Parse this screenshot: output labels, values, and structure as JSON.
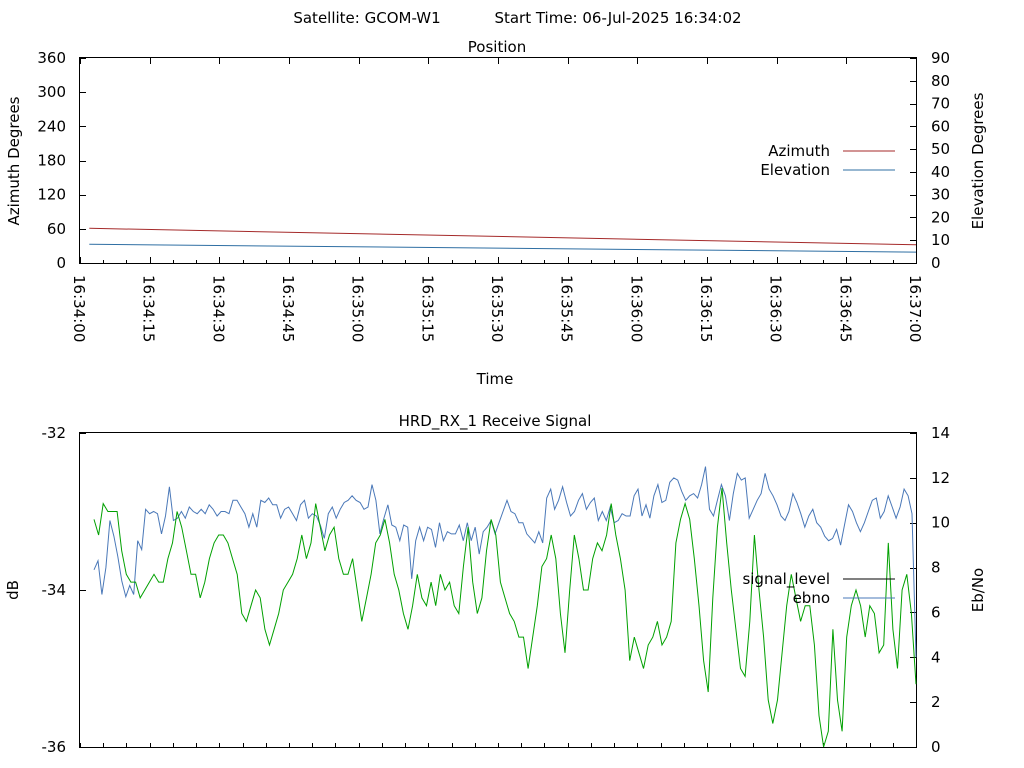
{
  "header": {
    "satellite_label": "Satellite: GCOM-W1",
    "start_time_label": "Start Time: 06-Jul-2025 16:34:02"
  },
  "colors": {
    "azimuth": "#a52a2a",
    "elevation": "#2f6fa3",
    "signal_level": "#00a000",
    "ebno": "#4a78b8",
    "legend_signal_sample": "#000000",
    "legend_ebno_sample": "#4a78b8"
  },
  "chart_data": [
    {
      "type": "line",
      "title": "Position",
      "xlabel": "Time",
      "ylabel": "Azimuth Degrees",
      "y2label": "Elevation Degrees",
      "x_ticks": [
        "16:34:00",
        "16:34:15",
        "16:34:30",
        "16:34:45",
        "16:35:00",
        "16:35:15",
        "16:35:30",
        "16:35:45",
        "16:36:00",
        "16:36:15",
        "16:36:30",
        "16:36:45",
        "16:37:00"
      ],
      "x_range_seconds": [
        0,
        180
      ],
      "ylim": [
        0,
        360
      ],
      "y_ticks": [
        0,
        60,
        120,
        180,
        240,
        300,
        360
      ],
      "y2lim": [
        0,
        90
      ],
      "y2_ticks": [
        0,
        10,
        20,
        30,
        40,
        50,
        60,
        70,
        80,
        90
      ],
      "legend_position": "right",
      "series": [
        {
          "name": "Azimuth",
          "axis": "y1",
          "x": [
            2,
            180
          ],
          "values": [
            61,
            32
          ]
        },
        {
          "name": "Elevation",
          "axis": "y2",
          "x": [
            2,
            180
          ],
          "values": [
            8.2,
            4.8
          ]
        }
      ]
    },
    {
      "type": "line",
      "title": "HRD_RX_1 Receive Signal",
      "xlabel": "",
      "ylabel": "dB",
      "y2label": "Eb/No",
      "ylim": [
        -36,
        -32
      ],
      "y_ticks": [
        -36,
        -34,
        -32
      ],
      "y2lim": [
        0,
        14
      ],
      "y2_ticks": [
        0,
        2,
        4,
        6,
        8,
        10,
        12,
        14
      ],
      "x_range_seconds": [
        0,
        180
      ],
      "legend_position": "right",
      "series": [
        {
          "name": "signal_level",
          "axis": "y1",
          "values": [
            -33.1,
            -33.3,
            -32.9,
            -33.0,
            -33.0,
            -33.0,
            -33.5,
            -33.8,
            -33.9,
            -33.9,
            -34.1,
            -34.0,
            -33.9,
            -33.8,
            -33.9,
            -33.9,
            -33.6,
            -33.4,
            -33.0,
            -33.2,
            -33.5,
            -33.8,
            -33.8,
            -34.1,
            -33.9,
            -33.6,
            -33.4,
            -33.3,
            -33.3,
            -33.4,
            -33.6,
            -33.8,
            -34.3,
            -34.4,
            -34.2,
            -34.0,
            -34.1,
            -34.5,
            -34.7,
            -34.5,
            -34.3,
            -34.0,
            -33.9,
            -33.8,
            -33.6,
            -33.3,
            -33.6,
            -33.4,
            -32.9,
            -33.2,
            -33.5,
            -33.3,
            -33.2,
            -33.6,
            -33.8,
            -33.8,
            -33.6,
            -34.0,
            -34.4,
            -34.1,
            -33.8,
            -33.4,
            -33.3,
            -33.1,
            -33.4,
            -33.8,
            -34.0,
            -34.3,
            -34.5,
            -34.2,
            -33.8,
            -34.1,
            -34.2,
            -33.9,
            -34.2,
            -33.8,
            -34.0,
            -33.9,
            -34.2,
            -34.3,
            -33.7,
            -33.2,
            -33.9,
            -34.3,
            -34.1,
            -33.5,
            -33.1,
            -33.3,
            -33.9,
            -34.1,
            -34.3,
            -34.4,
            -34.6,
            -34.6,
            -35.0,
            -34.6,
            -34.2,
            -33.7,
            -33.6,
            -33.3,
            -33.6,
            -34.3,
            -34.8,
            -34.0,
            -33.3,
            -33.6,
            -34.0,
            -34.0,
            -33.6,
            -33.4,
            -33.5,
            -33.3,
            -32.9,
            -33.3,
            -33.6,
            -34.0,
            -34.9,
            -34.6,
            -34.8,
            -35.0,
            -34.7,
            -34.6,
            -34.4,
            -34.7,
            -34.6,
            -34.4,
            -33.4,
            -33.1,
            -32.9,
            -33.1,
            -33.6,
            -34.2,
            -34.9,
            -35.3,
            -34.1,
            -33.2,
            -32.7,
            -33.4,
            -34.0,
            -34.5,
            -35.0,
            -35.1,
            -34.4,
            -33.3,
            -34.0,
            -34.6,
            -35.4,
            -35.7,
            -35.4,
            -34.8,
            -34.2,
            -33.8,
            -34.1,
            -34.4,
            -34.2,
            -34.2,
            -34.7,
            -35.6,
            -36.0,
            -35.8,
            -34.5,
            -35.4,
            -35.8,
            -34.6,
            -34.2,
            -34.0,
            -34.2,
            -34.6,
            -34.2,
            -34.3,
            -34.8,
            -34.7,
            -33.4,
            -34.5,
            -35.0,
            -34.0,
            -33.8,
            -34.3,
            -35.2
          ]
        },
        {
          "name": "ebno",
          "axis": "y2",
          "values": [
            7.9,
            8.3,
            6.8,
            8.0,
            10.1,
            9.4,
            8.5,
            7.4,
            6.7,
            7.2,
            6.8,
            9.2,
            8.8,
            10.6,
            10.4,
            10.5,
            10.4,
            9.5,
            10.3,
            11.6,
            10.1,
            10.2,
            10.5,
            10.2,
            10.7,
            10.5,
            10.4,
            10.6,
            10.4,
            10.8,
            10.6,
            10.3,
            10.5,
            10.5,
            10.4,
            11.0,
            11.0,
            10.7,
            10.4,
            9.8,
            10.4,
            9.8,
            11.0,
            10.9,
            11.1,
            10.8,
            10.8,
            10.2,
            10.6,
            10.7,
            10.4,
            10.1,
            10.8,
            11.0,
            10.2,
            10.4,
            10.3,
            9.9,
            9.3,
            10.4,
            10.7,
            10.2,
            10.6,
            10.9,
            11.0,
            11.2,
            11.0,
            10.9,
            10.6,
            10.7,
            11.7,
            11.0,
            9.5,
            10.2,
            10.8,
            9.9,
            9.8,
            9.2,
            9.9,
            9.8,
            7.5,
            9.2,
            9.8,
            9.2,
            9.8,
            9.7,
            8.9,
            10.0,
            9.2,
            9.6,
            9.5,
            9.5,
            9.9,
            9.2,
            10.0,
            9.2,
            9.8,
            8.6,
            9.6,
            9.8,
            10.1,
            9.5,
            10.0,
            10.5,
            11.0,
            10.5,
            10.4,
            10.0,
            10.0,
            9.5,
            9.3,
            9.1,
            9.6,
            9.1,
            11.1,
            11.5,
            10.6,
            11.0,
            11.6,
            10.9,
            10.3,
            10.5,
            11.0,
            11.3,
            10.6,
            10.9,
            11.1,
            10.1,
            10.5,
            10.1,
            10.7,
            10.0,
            10.1,
            10.4,
            10.3,
            10.3,
            11.2,
            11.5,
            10.3,
            10.8,
            10.2,
            11.2,
            11.7,
            10.9,
            11.0,
            11.8,
            12.0,
            11.9,
            11.4,
            11.0,
            11.2,
            11.3,
            11.1,
            11.7,
            12.5,
            10.6,
            10.3,
            11.0,
            11.7,
            11.2,
            10.1,
            11.3,
            12.2,
            11.9,
            12.0,
            10.2,
            10.6,
            11.0,
            11.3,
            12.2,
            11.5,
            11.2,
            10.8,
            10.3,
            10.1,
            10.5,
            11.3,
            10.9,
            10.4,
            9.8,
            10.3,
            10.6,
            10.0,
            9.8,
            9.4,
            9.2,
            9.3,
            9.7,
            9.0,
            9.9,
            10.8,
            10.5,
            10.0,
            9.6,
            10.0,
            10.5,
            11.0,
            11.1,
            10.2,
            10.5,
            11.2,
            10.7,
            10.2,
            10.7,
            11.5,
            11.2,
            10.4,
            4.0
          ]
        }
      ]
    }
  ]
}
